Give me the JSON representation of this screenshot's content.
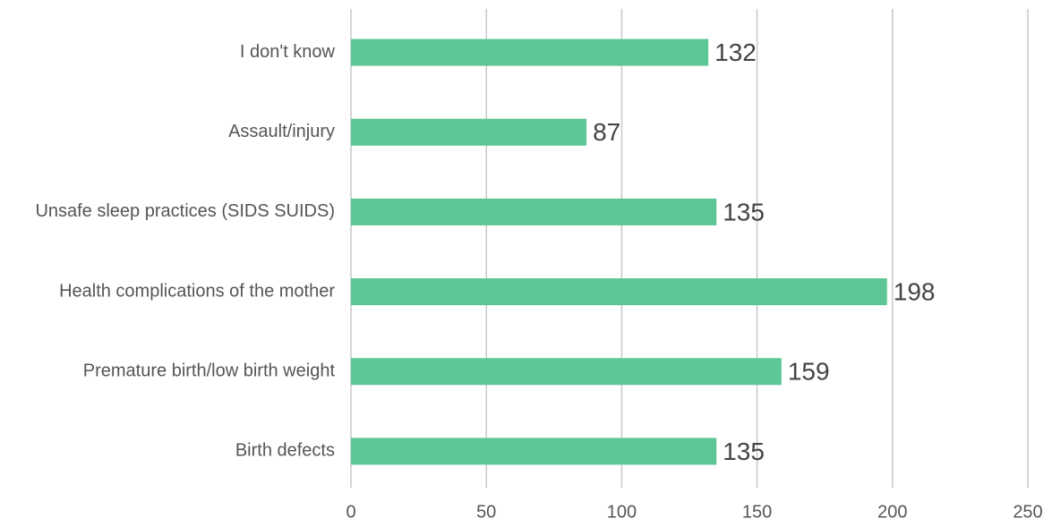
{
  "chart_data": {
    "type": "hbar",
    "categories": [
      "I don't know",
      "Assault/injury",
      "Unsafe sleep practices (SIDS SUIDS)",
      "Health complications of the mother",
      "Premature birth/low birth weight",
      "Birth defects"
    ],
    "values": [
      132,
      87,
      135,
      198,
      159,
      135
    ],
    "color": "#5cc795",
    "xlim": [
      0,
      250
    ],
    "xticks": [
      0,
      50,
      100,
      150,
      200,
      250
    ],
    "grid": true
  }
}
